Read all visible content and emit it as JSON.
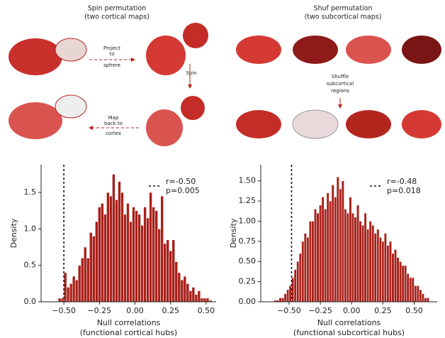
{
  "diagrams": {
    "spin": {
      "title": [
        "Spin permutation",
        "(two cortical maps)"
      ],
      "step1": [
        "Project",
        "to",
        "sphere"
      ],
      "step2": [
        "Spin"
      ],
      "step3": [
        "Map",
        "back to",
        "cortex"
      ]
    },
    "shuf": {
      "title": [
        "Shuf permutation",
        "(two subcortical maps)"
      ],
      "step1": [
        "Shuffle",
        "subcortical",
        "regions"
      ]
    }
  },
  "chart_data": [
    {
      "type": "histogram",
      "color": "#a8201a",
      "bins": [
        -0.56,
        -0.54,
        -0.52,
        -0.5,
        -0.48,
        -0.46,
        -0.44,
        -0.42,
        -0.4,
        -0.38,
        -0.36,
        -0.34,
        -0.32,
        -0.3,
        -0.28,
        -0.26,
        -0.24,
        -0.22,
        -0.2,
        -0.18,
        -0.16,
        -0.14,
        -0.12,
        -0.1,
        -0.08,
        -0.06,
        -0.04,
        -0.02,
        0,
        0.02,
        0.04,
        0.06,
        0.08,
        0.1,
        0.12,
        0.14,
        0.16,
        0.18,
        0.2,
        0.22,
        0.24,
        0.26,
        0.28,
        0.3,
        0.32,
        0.34,
        0.36,
        0.38,
        0.4,
        0.42,
        0.44,
        0.46,
        0.48,
        0.5,
        0.52,
        0.54
      ],
      "values": [
        0,
        0.05,
        0.05,
        0.4,
        0.2,
        0.25,
        0.35,
        0.3,
        0.5,
        0.6,
        0.75,
        0.6,
        0.95,
        0.9,
        1.1,
        1.3,
        1.35,
        1.2,
        1.5,
        1.45,
        1.75,
        1.4,
        1.65,
        1.5,
        1.2,
        1.35,
        1.1,
        1.3,
        1.25,
        1.2,
        1.05,
        1.3,
        1.15,
        1.5,
        1.3,
        1.25,
        1.0,
        1.45,
        0.8,
        0.85,
        0.7,
        0.85,
        0.55,
        0.4,
        0.3,
        0.35,
        0.25,
        0.15,
        0.2,
        0.1,
        0.15,
        0.05,
        0.05,
        0.05,
        0.02
      ],
      "observed": -0.5,
      "annotation": [
        "r=-0.50",
        "p=0.005"
      ],
      "xlim": [
        -0.66,
        0.57
      ],
      "ylim": [
        0,
        1.88
      ],
      "xticks": [
        {
          "value": -0.5,
          "label": "−0.50"
        },
        {
          "value": -0.25,
          "label": "−0.25"
        },
        {
          "value": 0,
          "label": "0.00"
        },
        {
          "value": 0.25,
          "label": "0.25"
        },
        {
          "value": 0.5,
          "label": "0.50"
        }
      ],
      "yticks": [
        {
          "value": 0,
          "label": "0.0"
        },
        {
          "value": 0.5,
          "label": "0.5"
        },
        {
          "value": 1,
          "label": "1.0"
        },
        {
          "value": 1.5,
          "label": "1.5"
        }
      ],
      "xlabel": [
        "Null correlations",
        "(functional cortical hubs)"
      ],
      "ylabel": "Density"
    },
    {
      "type": "histogram",
      "color": "#a8201a",
      "bins": [
        -0.62,
        -0.6,
        -0.58,
        -0.56,
        -0.54,
        -0.52,
        -0.5,
        -0.48,
        -0.46,
        -0.44,
        -0.42,
        -0.4,
        -0.38,
        -0.36,
        -0.34,
        -0.32,
        -0.3,
        -0.28,
        -0.26,
        -0.24,
        -0.22,
        -0.2,
        -0.18,
        -0.16,
        -0.14,
        -0.12,
        -0.1,
        -0.08,
        -0.06,
        -0.04,
        -0.02,
        0,
        0.02,
        0.04,
        0.06,
        0.08,
        0.1,
        0.12,
        0.14,
        0.16,
        0.18,
        0.2,
        0.22,
        0.24,
        0.26,
        0.28,
        0.3,
        0.32,
        0.34,
        0.36,
        0.38,
        0.4,
        0.42,
        0.44,
        0.46,
        0.48,
        0.5,
        0.52,
        0.54,
        0.56,
        0.58,
        0.6,
        0.62
      ],
      "values": [
        0.02,
        0.02,
        0.05,
        0.05,
        0.1,
        0.15,
        0.2,
        0.3,
        0.4,
        0.5,
        0.6,
        0.75,
        0.85,
        0.8,
        1.0,
        1.0,
        1.15,
        1.1,
        1.2,
        1.3,
        1.15,
        1.35,
        1.25,
        1.45,
        1.3,
        1.55,
        1.4,
        1.5,
        1.15,
        1.1,
        1.3,
        1.1,
        1.05,
        1.2,
        1.0,
        0.95,
        1.1,
        0.9,
        1.0,
        0.95,
        0.85,
        0.9,
        0.8,
        0.75,
        0.85,
        0.7,
        0.75,
        0.6,
        0.65,
        0.55,
        0.5,
        0.45,
        0.45,
        0.35,
        0.3,
        0.3,
        0.2,
        0.2,
        0.15,
        0.1,
        0.05,
        0.05
      ],
      "observed": -0.48,
      "annotation": [
        "r=-0.48",
        "p=0.018"
      ],
      "xlim": [
        -0.726,
        0.684
      ],
      "ylim": [
        0,
        1.7
      ],
      "xticks": [
        {
          "value": -0.5,
          "label": "−0.50"
        },
        {
          "value": -0.25,
          "label": "−0.25"
        },
        {
          "value": 0,
          "label": "0.00"
        },
        {
          "value": 0.25,
          "label": "0.25"
        },
        {
          "value": 0.5,
          "label": "0.50"
        }
      ],
      "yticks": [
        {
          "value": 0,
          "label": "0.00"
        },
        {
          "value": 0.25,
          "label": "0.25"
        },
        {
          "value": 0.5,
          "label": "0.50"
        },
        {
          "value": 0.75,
          "label": "0.75"
        },
        {
          "value": 1,
          "label": "1.00"
        },
        {
          "value": 1.25,
          "label": "1.25"
        },
        {
          "value": 1.5,
          "label": "1.50"
        }
      ],
      "xlabel": [
        "Null correlations",
        "(functional subcortical hubs)"
      ],
      "ylabel": "Density"
    }
  ]
}
